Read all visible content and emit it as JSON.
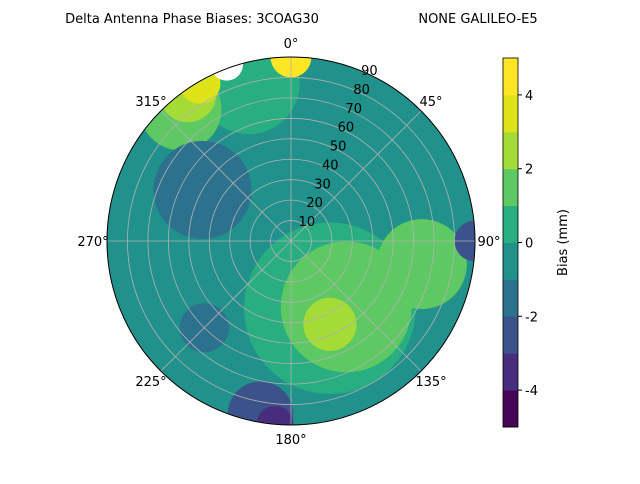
{
  "chart_data": {
    "type": "polar-contour",
    "title": "Delta Antenna Phase Biases: 3COAG30",
    "subtitle": "NONE GALILEO-E5",
    "theta_ticks": [
      {
        "value": 0,
        "label": "0°"
      },
      {
        "value": 45,
        "label": "45°"
      },
      {
        "value": 90,
        "label": "90°"
      },
      {
        "value": 135,
        "label": "135°"
      },
      {
        "value": 180,
        "label": "180°"
      },
      {
        "value": 225,
        "label": "225°"
      },
      {
        "value": 270,
        "label": "270°"
      },
      {
        "value": 315,
        "label": "315°"
      }
    ],
    "rlim": [
      0,
      90
    ],
    "rticks": [
      10,
      20,
      30,
      40,
      50,
      60,
      70,
      80,
      90
    ],
    "grid": true,
    "levels": [
      -5,
      -4,
      -3,
      -2,
      -1,
      0,
      1,
      2,
      3,
      4,
      5
    ],
    "colors": [
      "#450457",
      "#472d7b",
      "#3b528b",
      "#2c728e",
      "#21918c",
      "#28ae80",
      "#5ec962",
      "#a5db36",
      "#dde318",
      "#fde725"
    ],
    "over_color": "#ffffff",
    "colorbar_label": "Bias (mm)",
    "colorbar_ticks": [
      -4,
      -2,
      0,
      2,
      4
    ],
    "background_value": -0.5,
    "patches": [
      {
        "az": 150,
        "r": 38,
        "size": 42,
        "value": 0.5
      },
      {
        "az": 140,
        "r": 42,
        "size": 32,
        "value": 1.5
      },
      {
        "az": 155,
        "r": 45,
        "size": 13,
        "value": 2.5
      },
      {
        "az": 100,
        "r": 65,
        "size": 22,
        "value": 1.5
      },
      {
        "az": 345,
        "r": 80,
        "size": 25,
        "value": 0.5
      },
      {
        "az": 320,
        "r": 84,
        "size": 20,
        "value": 1.5
      },
      {
        "az": 325,
        "r": 88,
        "size": 14,
        "value": 2.5
      },
      {
        "az": 330,
        "r": 89,
        "size": 10,
        "value": 3.5
      },
      {
        "az": 0,
        "r": 90,
        "size": 10,
        "value": 4.5
      },
      {
        "az": 340,
        "r": 92,
        "size": 8,
        "value": 5.5
      },
      {
        "az": 300,
        "r": 50,
        "size": 24,
        "value": -1.5
      },
      {
        "az": 225,
        "r": 60,
        "size": 12,
        "value": -1.5
      },
      {
        "az": 190,
        "r": 86,
        "size": 16,
        "value": -2.5
      },
      {
        "az": 185,
        "r": 90,
        "size": 9,
        "value": -3.5
      },
      {
        "az": 90,
        "r": 90,
        "size": 10,
        "value": -2.5
      }
    ]
  }
}
